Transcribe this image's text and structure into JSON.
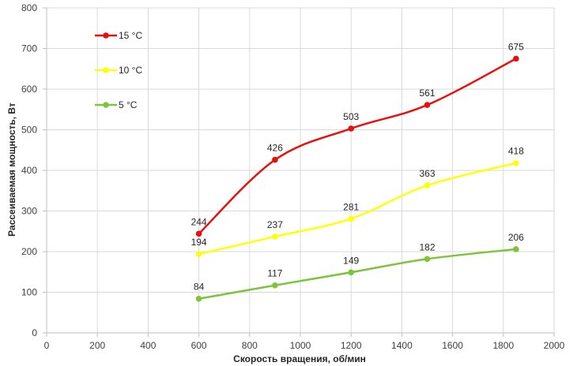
{
  "chart_data": {
    "type": "line",
    "title": "",
    "xlabel": "Скорость вращения, об/мин",
    "ylabel": "Рассеиваемая мощность, Вт",
    "xlim": [
      0,
      2000
    ],
    "ylim": [
      0,
      800
    ],
    "xticks": [
      0,
      200,
      400,
      600,
      800,
      1000,
      1200,
      1400,
      1600,
      1800,
      2000
    ],
    "yticks": [
      0,
      100,
      200,
      300,
      400,
      500,
      600,
      700,
      800
    ],
    "grid": true,
    "smooth": true,
    "legend": "top-left",
    "x": [
      600,
      900,
      1200,
      1500,
      1850
    ],
    "series": [
      {
        "name": "15 °C",
        "color": "#e8100c",
        "values": [
          244,
          426,
          503,
          561,
          675
        ]
      },
      {
        "name": "10 °C",
        "color": "#ffff0a",
        "values": [
          194,
          237,
          281,
          363,
          418
        ]
      },
      {
        "name": "5 °C",
        "color": "#7dc43a",
        "values": [
          84,
          117,
          149,
          182,
          206
        ]
      }
    ]
  }
}
